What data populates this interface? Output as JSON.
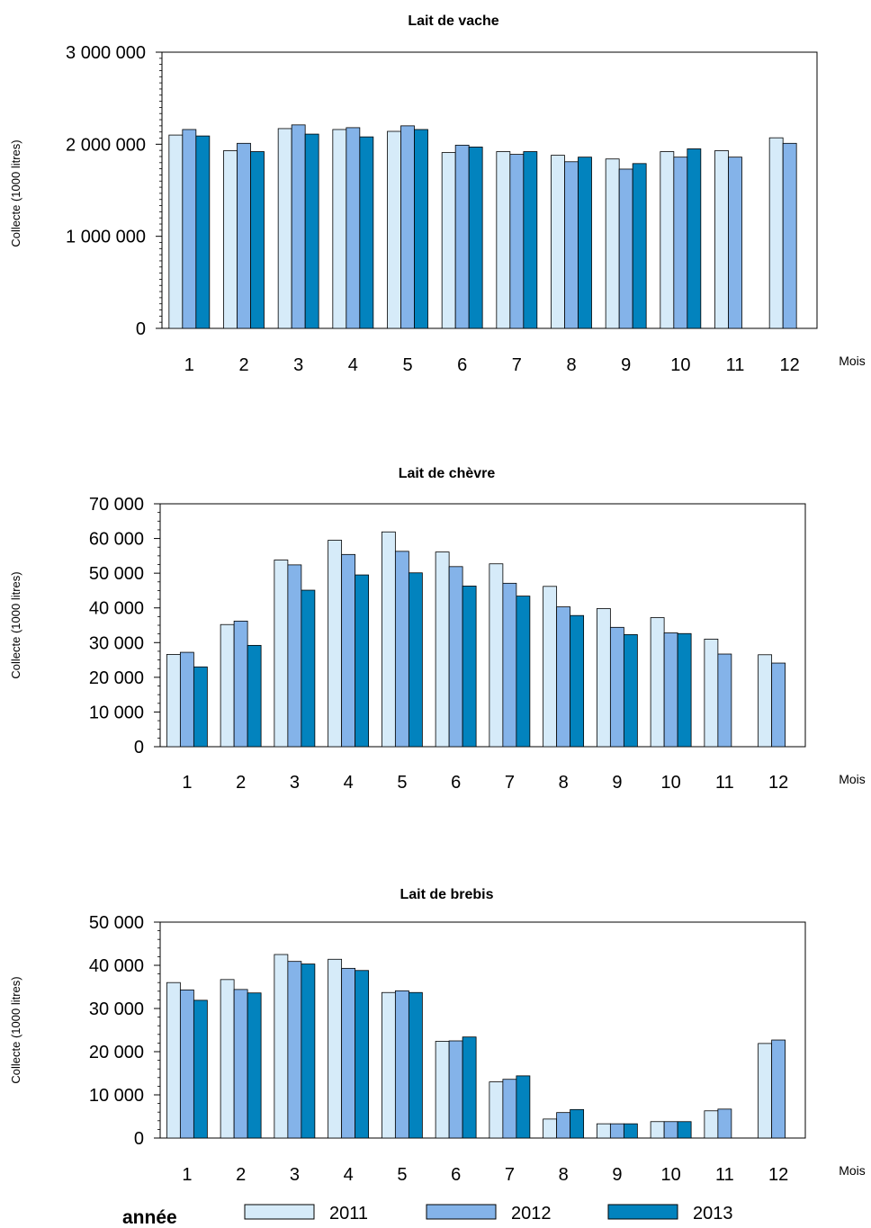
{
  "legend": {
    "title": "année",
    "items": [
      {
        "label": "2011",
        "color": "#d6ebf9"
      },
      {
        "label": "2012",
        "color": "#84b3e9"
      },
      {
        "label": "2013",
        "color": "#0283be"
      }
    ]
  },
  "chart_data": [
    {
      "type": "bar",
      "title": "Lait de vache",
      "ylabel": "Collecte (1000 litres)",
      "xlabel": "Mois",
      "categories": [
        "1",
        "2",
        "3",
        "4",
        "5",
        "6",
        "7",
        "8",
        "9",
        "10",
        "11",
        "12"
      ],
      "ylim": [
        0,
        3000000
      ],
      "yticks": [
        0,
        1000000,
        2000000,
        3000000
      ],
      "ytick_labels": [
        "0",
        "1 000 000",
        "2 000 000",
        "3 000 000"
      ],
      "series": [
        {
          "name": "2011",
          "values": [
            2100000,
            1930000,
            2170000,
            2160000,
            2140000,
            1910000,
            1920000,
            1880000,
            1840000,
            1920000,
            1930000,
            2070000
          ]
        },
        {
          "name": "2012",
          "values": [
            2160000,
            2010000,
            2210000,
            2180000,
            2200000,
            1990000,
            1890000,
            1810000,
            1730000,
            1860000,
            1860000,
            2010000
          ]
        },
        {
          "name": "2013",
          "values": [
            2090000,
            1920000,
            2110000,
            2080000,
            2160000,
            1970000,
            1920000,
            1860000,
            1790000,
            1950000,
            null,
            null
          ]
        }
      ]
    },
    {
      "type": "bar",
      "title": "Lait de chèvre",
      "ylabel": "Collecte (1000 litres)",
      "xlabel": "Mois",
      "categories": [
        "1",
        "2",
        "3",
        "4",
        "5",
        "6",
        "7",
        "8",
        "9",
        "10",
        "11",
        "12"
      ],
      "ylim": [
        0,
        70000
      ],
      "yticks": [
        0,
        10000,
        20000,
        30000,
        40000,
        50000,
        60000,
        70000
      ],
      "ytick_labels": [
        "0",
        "10 000",
        "20 000",
        "30 000",
        "40 000",
        "50 000",
        "60 000",
        "70 000"
      ],
      "series": [
        {
          "name": "2011",
          "values": [
            26600,
            35200,
            53800,
            59500,
            61900,
            56100,
            52700,
            46200,
            39800,
            37200,
            31000,
            26500
          ]
        },
        {
          "name": "2012",
          "values": [
            27200,
            36200,
            52400,
            55400,
            56300,
            51900,
            47100,
            40300,
            34400,
            32800,
            26700,
            24100
          ]
        },
        {
          "name": "2013",
          "values": [
            23000,
            29200,
            45100,
            49500,
            50100,
            46300,
            43400,
            37800,
            32300,
            32600,
            null,
            null
          ]
        }
      ]
    },
    {
      "type": "bar",
      "title": "Lait de brebis",
      "ylabel": "Collecte (1000 litres)",
      "xlabel": "Mois",
      "categories": [
        "1",
        "2",
        "3",
        "4",
        "5",
        "6",
        "7",
        "8",
        "9",
        "10",
        "11",
        "12"
      ],
      "ylim": [
        0,
        50000
      ],
      "yticks": [
        0,
        10000,
        20000,
        30000,
        40000,
        50000
      ],
      "ytick_labels": [
        "0",
        "10 000",
        "20 000",
        "30 000",
        "40 000",
        "50 000"
      ],
      "series": [
        {
          "name": "2011",
          "values": [
            36000,
            36700,
            42500,
            41400,
            33700,
            22400,
            13000,
            4400,
            3300,
            3800,
            6300,
            21900
          ]
        },
        {
          "name": "2012",
          "values": [
            34300,
            34400,
            40900,
            39300,
            34100,
            22500,
            13600,
            5900,
            3300,
            3800,
            6700,
            22700
          ]
        },
        {
          "name": "2013",
          "values": [
            31900,
            33600,
            40300,
            38800,
            33700,
            23400,
            14400,
            6600,
            3300,
            3800,
            null,
            null
          ]
        }
      ]
    }
  ]
}
